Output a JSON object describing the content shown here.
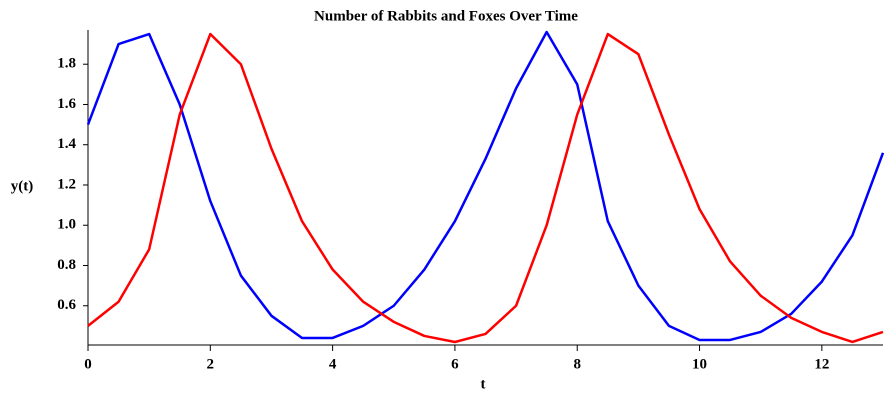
{
  "chart_data": {
    "type": "line",
    "title": "Number of Rabbits and Foxes Over Time",
    "x_label": "t",
    "y_label": "y(t)",
    "x": [
      0,
      0.5,
      1,
      1.5,
      2,
      2.5,
      3,
      3.5,
      4,
      4.5,
      5,
      5.5,
      6,
      6.5,
      7,
      7.5,
      8,
      8.5,
      9,
      9.5,
      10,
      10.5,
      11,
      11.5,
      12,
      12.5,
      13
    ],
    "series": [
      {
        "color": "#0000ff",
        "values": [
          1.5,
          1.9,
          1.95,
          1.6,
          1.12,
          0.75,
          0.55,
          0.44,
          0.44,
          0.5,
          0.6,
          0.78,
          1.02,
          1.33,
          1.68,
          1.96,
          1.7,
          1.02,
          0.7,
          0.5,
          0.43,
          0.43,
          0.47,
          0.56,
          0.72,
          0.95,
          1.36
        ]
      },
      {
        "color": "#ff0000",
        "values": [
          0.5,
          0.62,
          0.88,
          1.55,
          1.95,
          1.8,
          1.38,
          1.02,
          0.78,
          0.62,
          0.52,
          0.45,
          0.42,
          0.46,
          0.6,
          1.0,
          1.55,
          1.95,
          1.85,
          1.45,
          1.08,
          0.82,
          0.65,
          0.54,
          0.47,
          0.42,
          0.47
        ]
      }
    ],
    "xlim": [
      0,
      13
    ],
    "xticks": [
      0,
      2,
      4,
      6,
      8,
      10,
      12
    ],
    "ylim": [
      0.405,
      1.97
    ],
    "yticks": [
      0.6,
      0.8,
      {
        "value": 1.0,
        "label": "1.0"
      },
      1.2,
      1.4,
      1.6,
      1.8
    ]
  }
}
